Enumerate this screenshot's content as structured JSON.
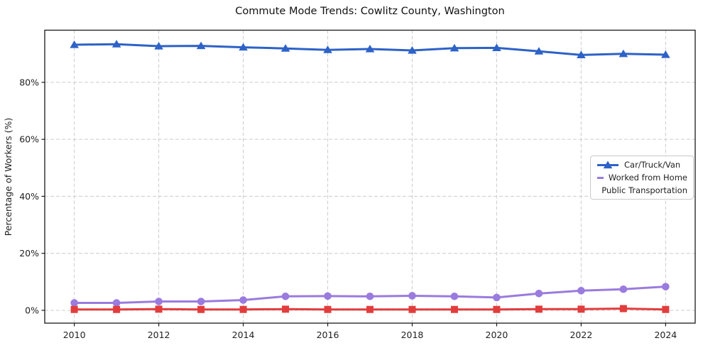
{
  "chart_data": {
    "type": "line",
    "title": "Commute Mode Trends: Cowlitz County, Washington",
    "xlabel": "",
    "ylabel": "Percentage of Workers (%)",
    "x": [
      2010,
      2011,
      2012,
      2013,
      2014,
      2015,
      2016,
      2017,
      2018,
      2019,
      2020,
      2021,
      2022,
      2023,
      2024
    ],
    "series": [
      {
        "name": "Car/Truck/Van",
        "color": "#2d62c7",
        "marker": "triangle",
        "values": [
          93.2,
          93.4,
          92.7,
          92.8,
          92.3,
          91.9,
          91.4,
          91.7,
          91.2,
          92.0,
          92.1,
          90.9,
          89.6,
          90.0,
          89.7
        ]
      },
      {
        "name": "Worked from Home",
        "color": "#9a7bde",
        "marker": "circle",
        "values": [
          2.6,
          2.6,
          3.1,
          3.1,
          3.6,
          4.9,
          5.0,
          4.9,
          5.1,
          4.9,
          4.5,
          5.9,
          6.9,
          7.4,
          8.3
        ]
      },
      {
        "name": "Public Transportation",
        "color": "#e23d3d",
        "marker": "square",
        "values": [
          0.3,
          0.3,
          0.4,
          0.3,
          0.3,
          0.4,
          0.3,
          0.3,
          0.3,
          0.3,
          0.3,
          0.4,
          0.4,
          0.6,
          0.3
        ]
      }
    ],
    "xticks": {
      "values": [
        2010,
        2012,
        2014,
        2016,
        2018,
        2020,
        2022,
        2024
      ],
      "labels": [
        "2010",
        "2012",
        "2014",
        "2016",
        "2018",
        "2020",
        "2022",
        "2024"
      ]
    },
    "yticks": {
      "values": [
        0,
        20,
        40,
        60,
        80
      ],
      "labels": [
        "0%",
        "20%",
        "40%",
        "60%",
        "80%"
      ]
    },
    "xlim": [
      2009.3,
      2024.7
    ],
    "ylim": [
      -4.5,
      98.3
    ],
    "grid": "dashed",
    "legend_position": "center-right"
  }
}
